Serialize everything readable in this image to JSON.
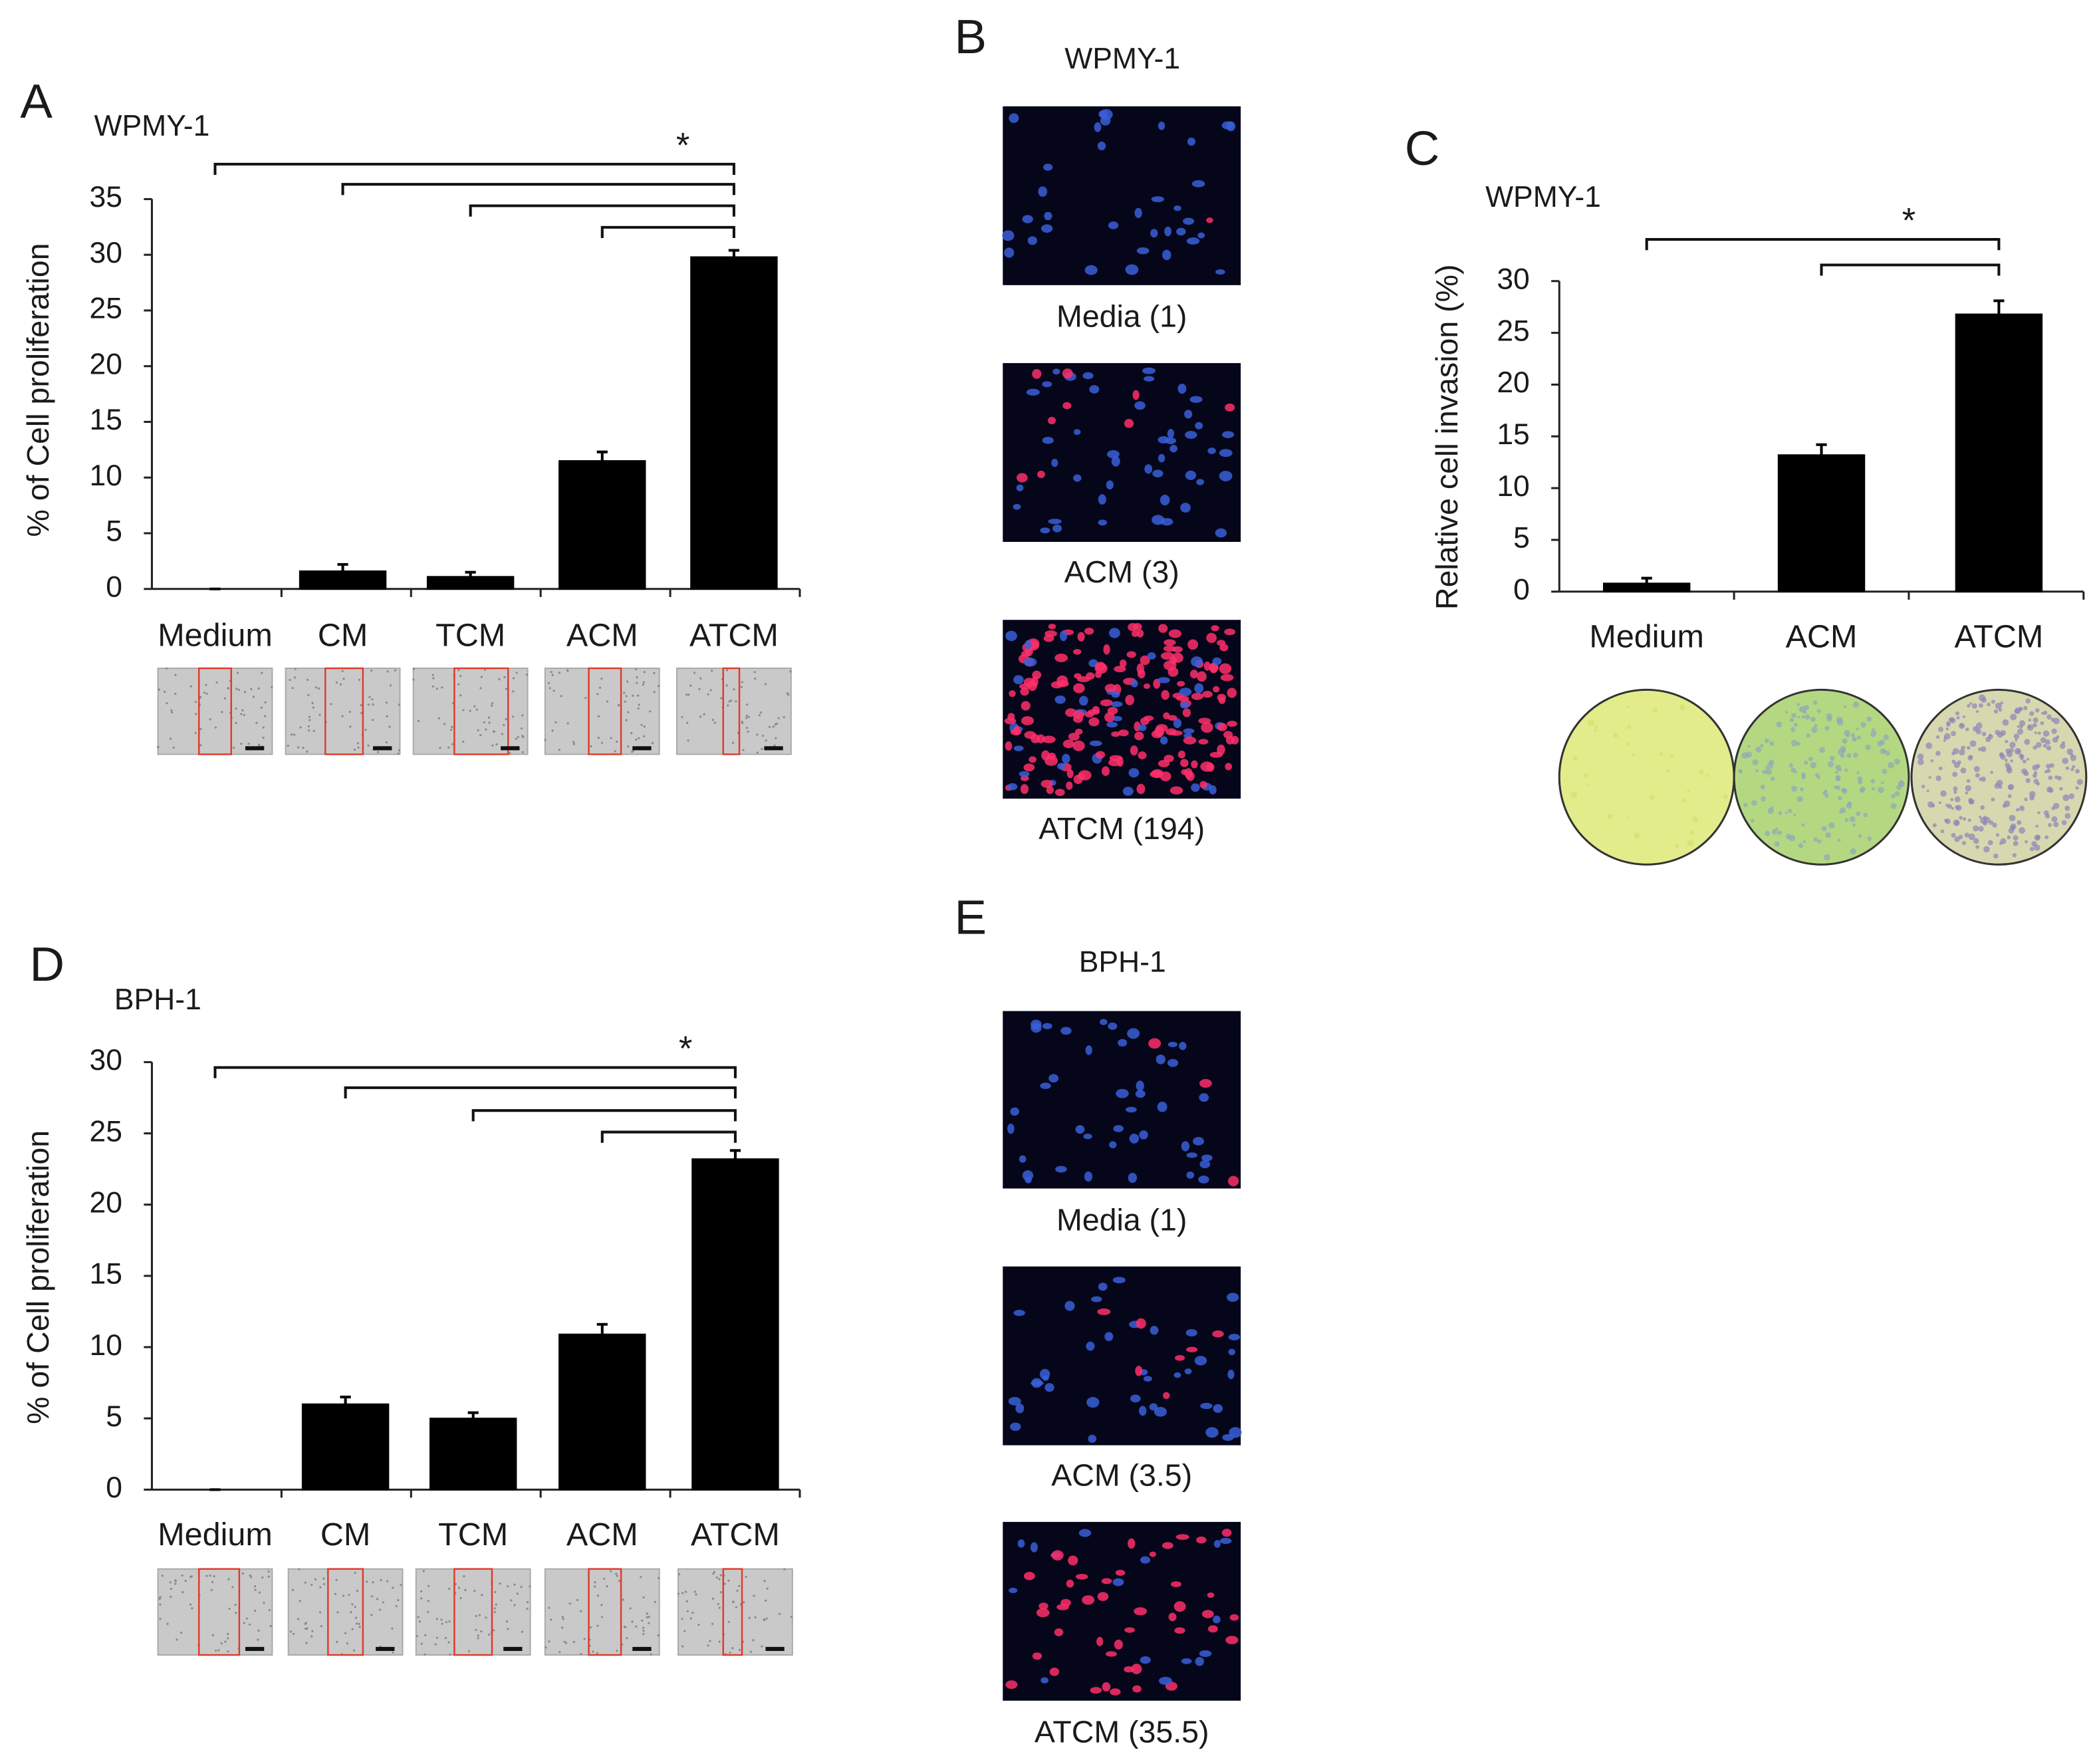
{
  "chart_data": [
    {
      "type": "bar",
      "panel": "A",
      "title": "WPMY-1",
      "y_label": "% of Cell proliferation",
      "categories": [
        "Medium",
        "CM",
        "TCM",
        "ACM",
        "ATCM"
      ],
      "values": [
        0,
        1.6,
        1.1,
        11.5,
        29.8
      ],
      "errors": [
        0,
        0.6,
        0.4,
        0.8,
        0.6
      ],
      "color": "#000000",
      "ylim": [
        0,
        35
      ],
      "yticks": [
        0,
        5,
        10,
        15,
        20,
        25,
        30,
        35
      ],
      "significance": "*"
    },
    {
      "type": "bar",
      "panel": "C",
      "title": "WPMY-1",
      "y_label": "Relative cell invasion (%)",
      "categories": [
        "Medium",
        "ACM",
        "ATCM"
      ],
      "values": [
        0.8,
        13.2,
        26.8
      ],
      "errors": [
        0.5,
        1.0,
        1.3
      ],
      "color": "#000000",
      "ylim": [
        0,
        30
      ],
      "yticks": [
        0,
        5,
        10,
        15,
        20,
        25,
        30
      ],
      "significance": "*"
    },
    {
      "type": "bar",
      "panel": "D",
      "title": "BPH-1",
      "y_label": "% of Cell proliferation",
      "categories": [
        "Medium",
        "CM",
        "TCM",
        "ACM",
        "ATCM"
      ],
      "values": [
        0,
        6.0,
        5.0,
        10.9,
        23.2
      ],
      "errors": [
        0,
        0.5,
        0.4,
        0.7,
        0.6
      ],
      "color": "#000000",
      "ylim": [
        0,
        30
      ],
      "yticks": [
        0,
        5,
        10,
        15,
        20,
        25,
        30
      ],
      "significance": "*"
    }
  ],
  "image_panels": [
    {
      "panel": "B",
      "title": "WPMY-1",
      "captions": [
        "Media (1)",
        "ACM (3)",
        "ATCM (194)"
      ]
    },
    {
      "panel": "E",
      "title": "BPH-1",
      "captions": [
        "Media (1)",
        "ACM (3.5)",
        "ATCM (35.5)"
      ]
    }
  ]
}
